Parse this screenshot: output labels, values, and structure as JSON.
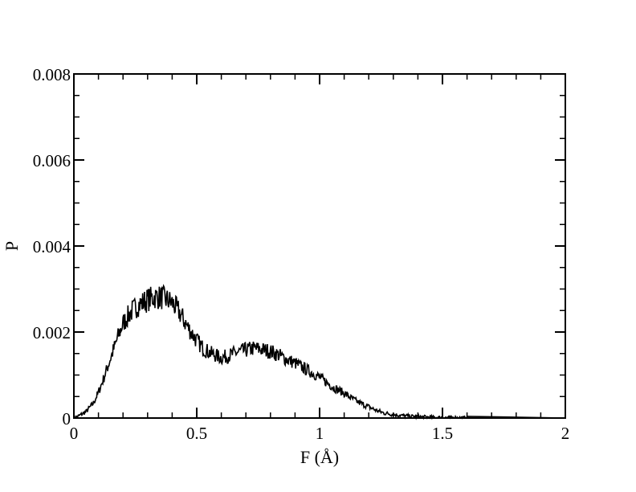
{
  "chart_data": {
    "type": "line",
    "title": "",
    "xlabel": "F (Å)",
    "ylabel": "P",
    "xlim": [
      0,
      2
    ],
    "ylim": [
      0,
      0.008
    ],
    "x_ticks": [
      0,
      0.5,
      1,
      1.5,
      2
    ],
    "x_tick_labels": [
      "0",
      "0.5",
      "1",
      "1.5",
      "2"
    ],
    "y_ticks": [
      0,
      0.002,
      0.004,
      0.006,
      0.008
    ],
    "y_tick_labels": [
      "0",
      "0.002",
      "0.004",
      "0.006",
      "0.008"
    ],
    "x_minor_step": 0.1,
    "y_minor_step": 0.0005,
    "grid": false,
    "legend": "none",
    "line_color": "#000000",
    "series": [
      {
        "x": [
          0.0,
          0.02,
          0.05,
          0.08,
          0.1,
          0.12,
          0.15,
          0.18,
          0.2,
          0.23,
          0.26,
          0.3,
          0.33,
          0.36,
          0.4,
          0.43,
          0.46,
          0.5,
          0.53,
          0.56,
          0.6,
          0.63,
          0.66,
          0.7,
          0.73,
          0.76,
          0.8,
          0.83,
          0.86,
          0.9,
          0.93,
          0.96,
          1.0,
          1.03,
          1.06,
          1.1,
          1.13,
          1.16,
          1.2,
          1.23,
          1.26,
          1.3,
          1.35,
          1.4,
          1.45,
          1.5,
          1.55,
          1.6
        ],
        "y": [
          0.0,
          5e-05,
          0.00015,
          0.00035,
          0.0006,
          0.0009,
          0.0014,
          0.0019,
          0.0022,
          0.00245,
          0.00262,
          0.00275,
          0.00282,
          0.0028,
          0.00268,
          0.00245,
          0.00215,
          0.0018,
          0.0016,
          0.0015,
          0.0014,
          0.00145,
          0.00152,
          0.00158,
          0.00162,
          0.0016,
          0.00155,
          0.00148,
          0.00138,
          0.00128,
          0.00118,
          0.00108,
          0.00095,
          0.00082,
          0.0007,
          0.00058,
          0.00046,
          0.00036,
          0.00026,
          0.00018,
          0.00012,
          8e-05,
          5e-05,
          3e-05,
          2e-05,
          1e-05,
          1e-05,
          0.0
        ]
      }
    ]
  }
}
